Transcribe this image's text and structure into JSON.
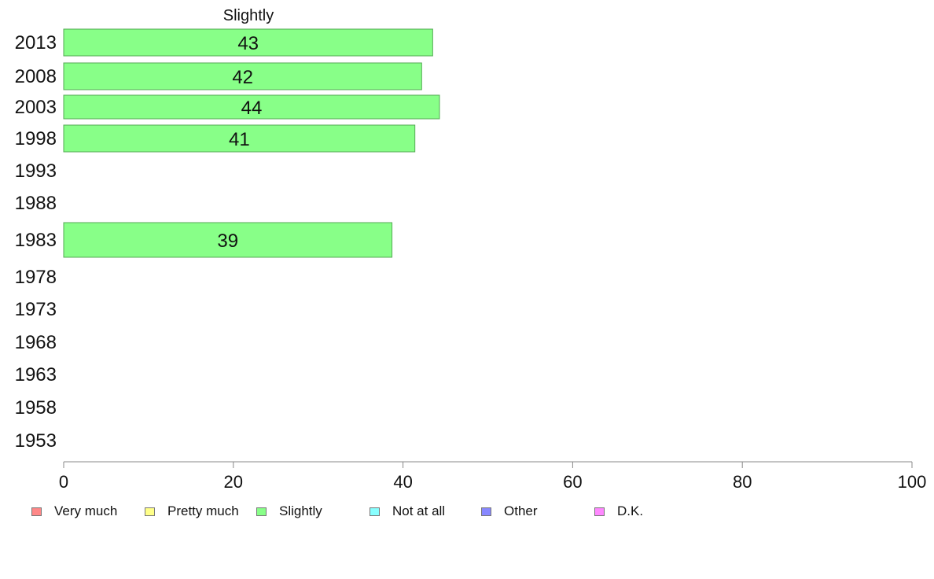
{
  "chart_data": {
    "type": "bar",
    "orientation": "horizontal",
    "title": "Slightly",
    "categories": [
      "2013",
      "2008",
      "2003",
      "1998",
      "1993",
      "1988",
      "1983",
      "1978",
      "1973",
      "1968",
      "1963",
      "1958",
      "1953"
    ],
    "series": [
      {
        "name": "Slightly",
        "values": [
          43.5,
          42.2,
          44.3,
          41.4,
          null,
          null,
          38.7,
          null,
          null,
          null,
          null,
          null,
          null
        ]
      }
    ],
    "data_labels": [
      "43",
      "42",
      "44",
      "41",
      "",
      "",
      "39",
      "",
      "",
      "",
      "",
      "",
      ""
    ],
    "xlim": [
      0,
      100
    ],
    "xticks": [
      "0",
      "20",
      "40",
      "60",
      "80",
      "100"
    ],
    "bar_color": "#88ff88",
    "bar_edge_color": "#55aa55",
    "axis_color": "#888888",
    "legend_position": "bottom",
    "legend": [
      {
        "label": "Very much",
        "color": "#ff8888"
      },
      {
        "label": "Pretty much",
        "color": "#ffff88"
      },
      {
        "label": "Slightly",
        "color": "#88ff88"
      },
      {
        "label": "Not at all",
        "color": "#88ffff"
      },
      {
        "label": "Other",
        "color": "#8888ff"
      },
      {
        "label": "D.K.",
        "color": "#ff88ff"
      }
    ]
  }
}
